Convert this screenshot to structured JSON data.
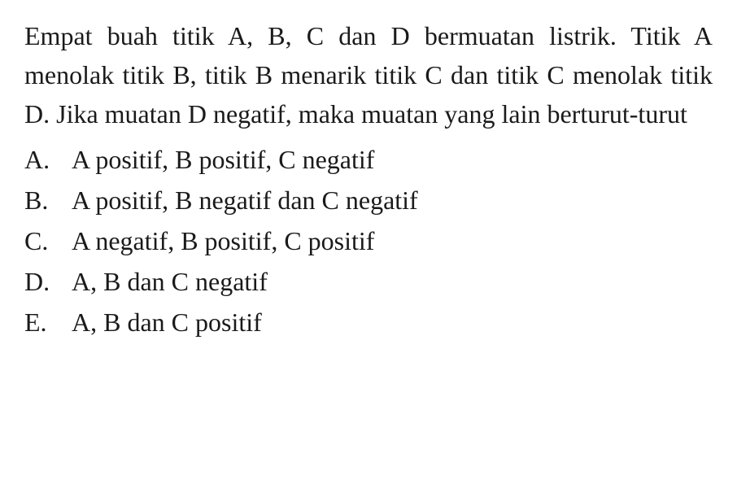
{
  "question": {
    "text": "Empat buah titik A, B, C dan D bermuatan listrik. Titik A menolak titik B, titik B menarik titik C dan titik C menolak titik D. Jika muatan D negatif, maka muatan yang lain berturut-turut"
  },
  "options": [
    {
      "letter": "A.",
      "text": "A positif, B positif, C negatif"
    },
    {
      "letter": "B.",
      "text": "A positif, B negatif dan C negatif"
    },
    {
      "letter": "C.",
      "text": "A negatif, B positif, C positif"
    },
    {
      "letter": "D.",
      "text": "A, B dan C negatif"
    },
    {
      "letter": "E.",
      "text": "A, B dan C positif"
    }
  ],
  "style": {
    "font_family": "Times New Roman",
    "font_size_pt": 24,
    "text_color": "#1a1a1a",
    "background_color": "#ffffff",
    "line_height": 1.5
  }
}
